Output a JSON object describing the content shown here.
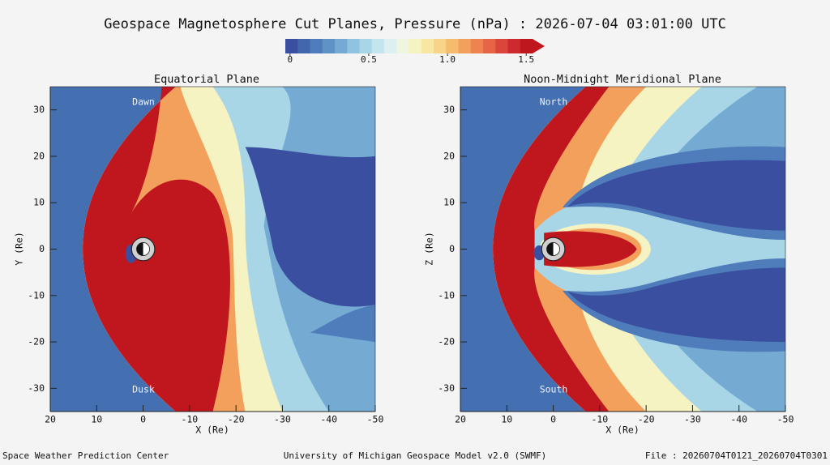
{
  "title": "Geospace Magnetosphere Cut Planes, Pressure (nPa) : 2026-07-04 03:01:00 UTC",
  "colorbar": {
    "lim": [
      -0.03,
      1.54
    ],
    "ticks": [
      0,
      0.5,
      {
        "value": 1,
        "label": "1.0"
      },
      1.5
    ],
    "colors": [
      "#3a4fa0",
      "#4466ad",
      "#4f7cba",
      "#5e93c6",
      "#75abd3",
      "#8fc3df",
      "#a9d6e7",
      "#c4e5ee",
      "#dceff1",
      "#eef6df",
      "#f6f3c2",
      "#f8e7a3",
      "#f7d486",
      "#f6bc6e",
      "#f3a05d",
      "#ee8350",
      "#e66545",
      "#da463a",
      "#cc2a2e",
      "#c0171f"
    ]
  },
  "chart_data": [
    {
      "type": "contour",
      "title": "Equatorial Plane",
      "xlabel": "X (Re)",
      "ylabel": "Y (Re)",
      "xlim": [
        20,
        -50
      ],
      "ylim": [
        -35,
        35
      ],
      "xticks": [
        20,
        10,
        0,
        -10,
        -20,
        -30,
        -40,
        -50
      ],
      "yticks": [
        30,
        20,
        10,
        0,
        -10,
        -20,
        -30
      ],
      "annotations": [
        "Dawn",
        "Dusk"
      ]
    },
    {
      "type": "contour",
      "title": "Noon-Midnight Meridional Plane",
      "xlabel": "X (Re)",
      "ylabel": "Z (Re)",
      "xlim": [
        20,
        -50
      ],
      "ylim": [
        -35,
        35
      ],
      "xticks": [
        20,
        10,
        0,
        -10,
        -20,
        -30,
        -40,
        -50
      ],
      "yticks": [
        30,
        20,
        10,
        0,
        -10,
        -20,
        -30
      ],
      "annotations": [
        "North",
        "South"
      ]
    }
  ],
  "footer": {
    "left": "Space Weather Prediction Center",
    "center": "University of Michigan Geospace Model v2.0 (SWMF)",
    "right": "File : 20260704T0121_20260704T0301"
  }
}
